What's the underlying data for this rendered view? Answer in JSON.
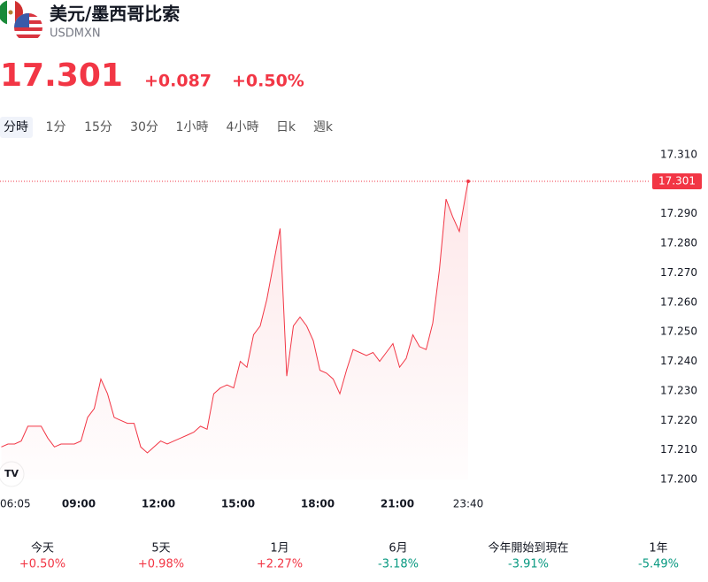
{
  "header": {
    "title": "美元/墨西哥比索",
    "symbol": "USDMXN",
    "price": "17.301",
    "change": "+0.087",
    "change_pct": "+0.50%"
  },
  "tabs": [
    "分時",
    "1分",
    "15分",
    "30分",
    "1小時",
    "4小時",
    "日k",
    "週k"
  ],
  "chart_data": {
    "type": "line",
    "x": [
      "06:05",
      "06:20",
      "06:35",
      "06:50",
      "07:05",
      "07:20",
      "07:35",
      "07:50",
      "08:05",
      "08:20",
      "08:35",
      "08:50",
      "09:05",
      "09:20",
      "09:35",
      "09:50",
      "10:05",
      "10:20",
      "10:35",
      "10:50",
      "11:05",
      "11:20",
      "11:35",
      "11:50",
      "12:05",
      "12:20",
      "12:35",
      "12:50",
      "13:05",
      "13:20",
      "13:35",
      "13:50",
      "14:05",
      "14:20",
      "14:35",
      "14:50",
      "15:05",
      "15:20",
      "15:35",
      "15:50",
      "16:05",
      "16:20",
      "16:35",
      "16:50",
      "17:05",
      "17:20",
      "17:35",
      "17:50",
      "18:05",
      "18:20",
      "18:35",
      "18:50",
      "19:05",
      "19:20",
      "19:35",
      "19:50",
      "20:05",
      "20:20",
      "20:35",
      "20:50",
      "21:05",
      "21:20",
      "21:35",
      "21:50",
      "22:05",
      "22:20",
      "22:35",
      "22:50",
      "23:05",
      "23:20",
      "23:35",
      "23:40"
    ],
    "series": [
      {
        "color": "#f23645",
        "values": [
          17.211,
          17.212,
          17.212,
          17.213,
          17.218,
          17.218,
          17.218,
          17.214,
          17.211,
          17.212,
          17.212,
          17.212,
          17.213,
          17.221,
          17.224,
          17.234,
          17.229,
          17.221,
          17.22,
          17.219,
          17.219,
          17.211,
          17.209,
          17.211,
          17.213,
          17.212,
          17.213,
          17.214,
          17.215,
          17.216,
          17.218,
          17.217,
          17.229,
          17.231,
          17.232,
          17.231,
          17.24,
          17.238,
          17.249,
          17.252,
          17.261,
          17.273,
          17.285,
          17.235,
          17.252,
          17.255,
          17.252,
          17.247,
          17.237,
          17.236,
          17.234,
          17.229,
          17.237,
          17.244,
          17.243,
          17.242,
          17.243,
          17.24,
          17.243,
          17.246,
          17.238,
          17.241,
          17.249,
          17.245,
          17.244,
          17.253,
          17.271,
          17.295,
          17.289,
          17.284,
          17.297,
          17.301
        ]
      }
    ],
    "xticks": [
      "06:05",
      "09:00",
      "12:00",
      "15:00",
      "18:00",
      "21:00",
      "23:40"
    ],
    "ylim": [
      17.2,
      17.31
    ],
    "yticks": [
      {
        "value": 17.2,
        "label": "17.200"
      },
      {
        "value": 17.21,
        "label": "17.210"
      },
      {
        "value": 17.22,
        "label": "17.220"
      },
      {
        "value": 17.23,
        "label": "17.230"
      },
      {
        "value": 17.24,
        "label": "17.240"
      },
      {
        "value": 17.25,
        "label": "17.250"
      },
      {
        "value": 17.26,
        "label": "17.260"
      },
      {
        "value": 17.27,
        "label": "17.270"
      },
      {
        "value": 17.28,
        "label": "17.280"
      },
      {
        "value": 17.29,
        "label": "17.290"
      },
      {
        "value": 17.31,
        "label": "17.310"
      }
    ]
  },
  "performance": [
    {
      "label": "今天",
      "value": "+0.50%"
    },
    {
      "label": "5天",
      "value": "+0.98%"
    },
    {
      "label": "1月",
      "value": "+2.27%"
    },
    {
      "label": "6月",
      "value": "-3.18%"
    },
    {
      "label": "今年開始到現在",
      "value": "-3.91%"
    },
    {
      "label": "1年",
      "value": "-5.49%"
    }
  ]
}
